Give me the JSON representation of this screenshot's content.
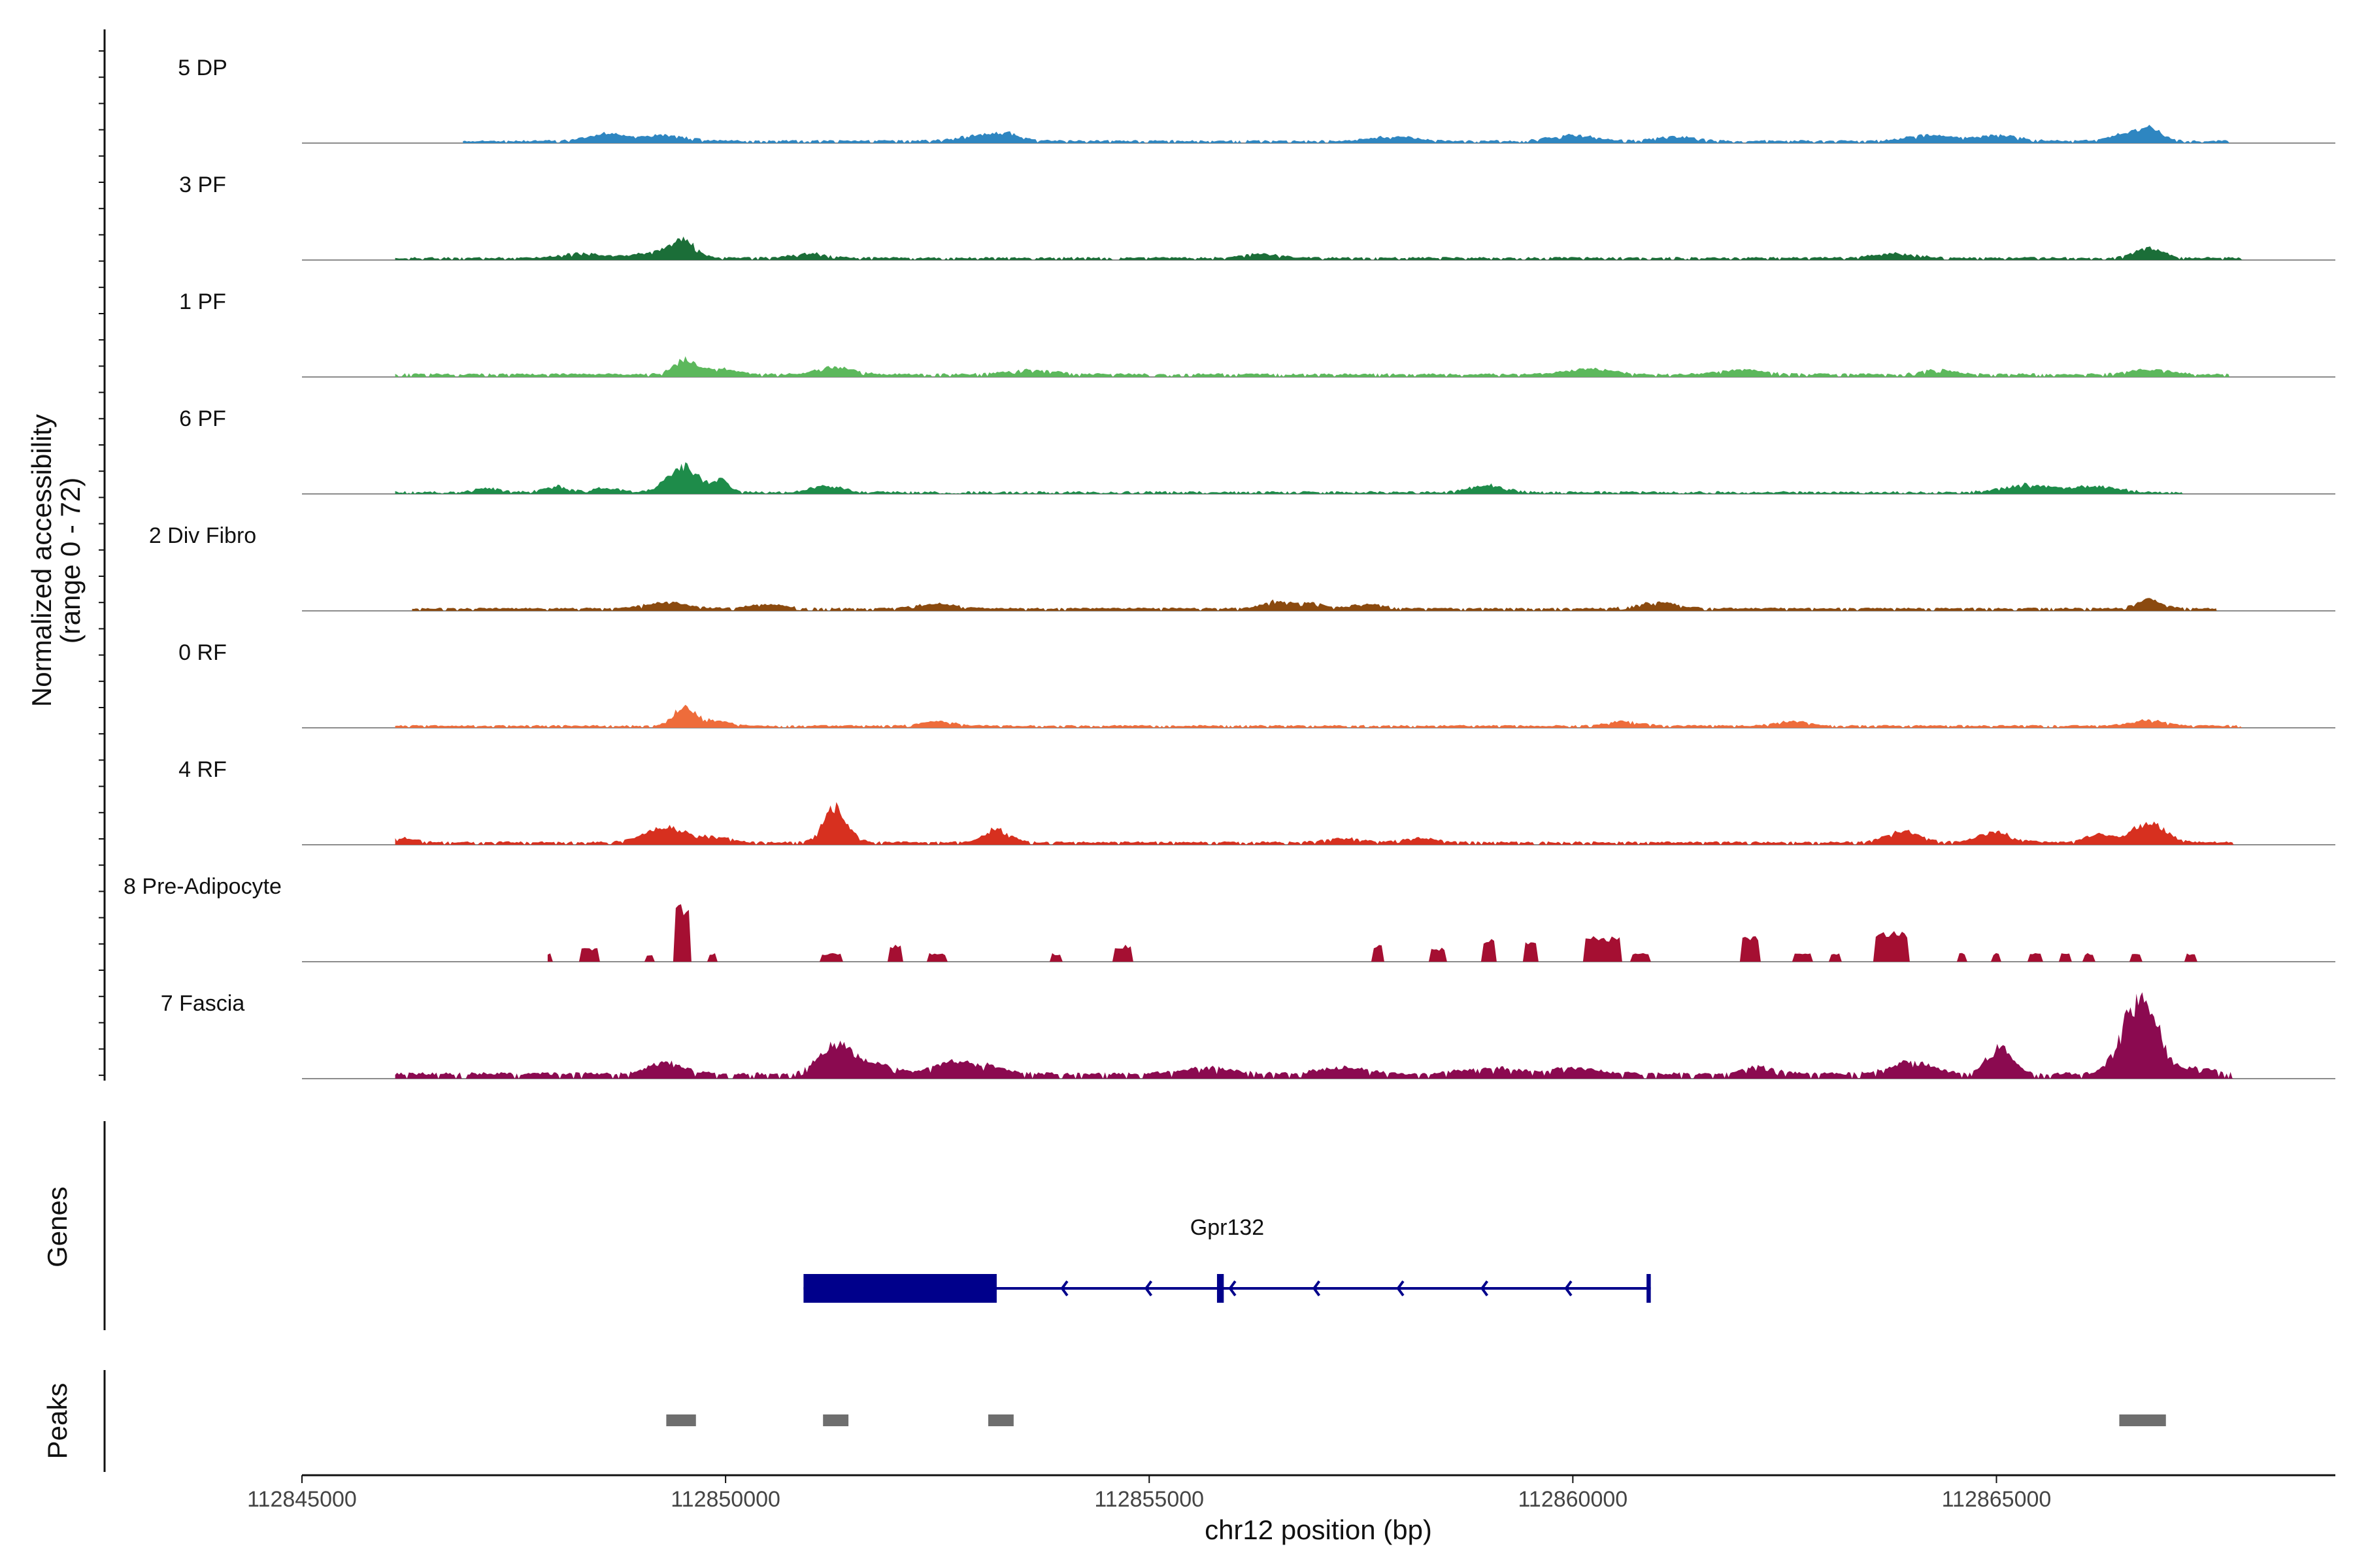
{
  "chart_data": {
    "type": "area",
    "title": "",
    "region": {
      "chromosome": "chr12",
      "start": 112845000,
      "end": 112869000
    },
    "xlabel": "chr12 position (bp)",
    "ylabel_line1": "Normalized accessibility",
    "ylabel_line2": "(range 0 - 72)",
    "ylim": [
      0,
      72
    ],
    "x_ticks": [
      112845000,
      112850000,
      112855000,
      112860000,
      112865000
    ],
    "x_tick_labels": [
      "112845000",
      "112850000",
      "112855000",
      "112860000",
      "112865000"
    ],
    "series": [
      {
        "name": "5 DP",
        "color": "#2E86C1",
        "data_start": 112846900,
        "data_end": 112867750,
        "baseline": 1.0,
        "noise": 1.2,
        "seed": 11,
        "blocky": false,
        "peaks": [
          [
            112848600,
            5,
            220
          ],
          [
            112849300,
            4,
            250
          ],
          [
            112852900,
            3,
            220
          ],
          [
            112853300,
            5,
            180
          ],
          [
            112857900,
            3,
            250
          ],
          [
            112860000,
            4,
            250
          ],
          [
            112861200,
            3,
            220
          ],
          [
            112864200,
            4,
            250
          ],
          [
            112865000,
            4,
            250
          ],
          [
            112866500,
            4,
            200
          ],
          [
            112866800,
            8,
            150
          ]
        ]
      },
      {
        "name": "3 PF",
        "color": "#1B6E38",
        "data_start": 112846100,
        "data_end": 112867900,
        "baseline": 1.0,
        "noise": 1.2,
        "seed": 23,
        "blocky": false,
        "peaks": [
          [
            112848300,
            3,
            250
          ],
          [
            112849200,
            4,
            250
          ],
          [
            112849500,
            11,
            140
          ],
          [
            112851000,
            3,
            200
          ],
          [
            112856300,
            3,
            200
          ],
          [
            112863800,
            3,
            250
          ],
          [
            112866800,
            7,
            160
          ]
        ]
      },
      {
        "name": "1 PF",
        "color": "#5CB85C",
        "data_start": 112846100,
        "data_end": 112867750,
        "baseline": 1.3,
        "noise": 1.3,
        "seed": 37,
        "blocky": false,
        "peaks": [
          [
            112849500,
            10,
            120
          ],
          [
            112849900,
            4,
            200
          ],
          [
            112851300,
            5,
            200
          ],
          [
            112853600,
            3,
            300
          ],
          [
            112860200,
            4,
            250
          ],
          [
            112862000,
            3,
            250
          ],
          [
            112864300,
            3,
            200
          ],
          [
            112866800,
            3,
            250
          ]
        ]
      },
      {
        "name": "6 PF",
        "color": "#1E8C4A",
        "data_start": 112846100,
        "data_end": 112867200,
        "baseline": 0.5,
        "noise": 1.5,
        "seed": 41,
        "blocky": false,
        "peaks": [
          [
            112847200,
            3,
            150
          ],
          [
            112848000,
            4,
            150
          ],
          [
            112848600,
            3,
            150
          ],
          [
            112849500,
            18,
            180
          ],
          [
            112849950,
            8,
            90
          ],
          [
            112851200,
            4,
            200
          ],
          [
            112859000,
            5,
            200
          ],
          [
            112865400,
            5,
            300
          ],
          [
            112866200,
            4,
            250
          ]
        ]
      },
      {
        "name": "2 Div Fibro",
        "color": "#8B4A0F",
        "data_start": 112846300,
        "data_end": 112867600,
        "baseline": 1.3,
        "noise": 1.0,
        "seed": 53,
        "blocky": false,
        "peaks": [
          [
            112849300,
            4,
            250
          ],
          [
            112850500,
            3,
            200
          ],
          [
            112852500,
            3,
            250
          ],
          [
            112856500,
            5,
            150
          ],
          [
            112856900,
            4,
            150
          ],
          [
            112857600,
            3,
            200
          ],
          [
            112861000,
            4,
            250
          ],
          [
            112866800,
            6,
            150
          ]
        ]
      },
      {
        "name": "0 RF",
        "color": "#EE6C3B",
        "data_start": 112846100,
        "data_end": 112867900,
        "baseline": 1.0,
        "noise": 1.0,
        "seed": 67,
        "blocky": false,
        "peaks": [
          [
            112849500,
            12,
            120
          ],
          [
            112849800,
            4,
            200
          ],
          [
            112852500,
            3,
            200
          ],
          [
            112860600,
            3,
            200
          ],
          [
            112862600,
            3,
            200
          ],
          [
            112866800,
            4,
            200
          ]
        ]
      },
      {
        "name": "4 RF",
        "color": "#D7301F",
        "data_start": 112846100,
        "data_end": 112867800,
        "baseline": 1.2,
        "noise": 1.2,
        "seed": 79,
        "blocky": false,
        "peaks": [
          [
            112846200,
            3,
            150
          ],
          [
            112849300,
            10,
            250
          ],
          [
            112849900,
            4,
            150
          ],
          [
            112851300,
            24,
            140
          ],
          [
            112853200,
            9,
            150
          ],
          [
            112857300,
            3,
            200
          ],
          [
            112858200,
            3,
            200
          ],
          [
            112863900,
            8,
            200
          ],
          [
            112865000,
            7,
            200
          ],
          [
            112866200,
            6,
            150
          ],
          [
            112866800,
            13,
            200
          ]
        ]
      },
      {
        "name": "8 Pre-Adipocyte",
        "color": "#A50F32",
        "data_start": 112847900,
        "data_end": 112867500,
        "baseline": 0,
        "noise": 0,
        "seed": 83,
        "blocky": true,
        "peaks": [
          [
            112847900,
            6,
            60
          ],
          [
            112848400,
            10,
            110
          ],
          [
            112849100,
            5,
            50
          ],
          [
            112849500,
            40,
            90
          ],
          [
            112849850,
            6,
            40
          ],
          [
            112851250,
            6,
            120
          ],
          [
            112852000,
            12,
            70
          ],
          [
            112852500,
            6,
            120
          ],
          [
            112853900,
            6,
            50
          ],
          [
            112854700,
            12,
            110
          ],
          [
            112857700,
            12,
            70
          ],
          [
            112858400,
            10,
            100
          ],
          [
            112859000,
            16,
            80
          ],
          [
            112859500,
            14,
            70
          ],
          [
            112860350,
            18,
            220
          ],
          [
            112860800,
            6,
            120
          ],
          [
            112862100,
            18,
            100
          ],
          [
            112862700,
            6,
            110
          ],
          [
            112863100,
            6,
            70
          ],
          [
            112863750,
            22,
            200
          ],
          [
            112864600,
            6,
            50
          ],
          [
            112865000,
            6,
            50
          ],
          [
            112865450,
            6,
            80
          ],
          [
            112865800,
            6,
            60
          ],
          [
            112866100,
            6,
            60
          ],
          [
            112866650,
            6,
            50
          ],
          [
            112867300,
            6,
            60
          ]
        ]
      },
      {
        "name": "7 Fascia",
        "color": "#8B0A50",
        "data_start": 112846100,
        "data_end": 112867800,
        "baseline": 2.5,
        "noise": 2.0,
        "seed": 97,
        "blocky": false,
        "peaks": [
          [
            112849300,
            8,
            200
          ],
          [
            112851300,
            20,
            200
          ],
          [
            112851800,
            6,
            200
          ],
          [
            112852600,
            6,
            200
          ],
          [
            112853000,
            6,
            250
          ],
          [
            112855700,
            4,
            300
          ],
          [
            112857300,
            4,
            300
          ],
          [
            112859000,
            4,
            300
          ],
          [
            112860000,
            4,
            300
          ],
          [
            112862200,
            5,
            200
          ],
          [
            112864000,
            8,
            250
          ],
          [
            112865050,
            18,
            150
          ],
          [
            112866700,
            55,
            200
          ],
          [
            112867400,
            4,
            150
          ]
        ]
      }
    ],
    "genes_panel": {
      "title": "Genes",
      "gene_name": "Gpr132",
      "strand": "-",
      "color": "#00008B",
      "tx_start": 112850920,
      "tx_end": 112860920,
      "thick_start": 112850920,
      "thick_end": 112853200,
      "exons": [
        [
          112855800,
          112855880
        ],
        [
          112860870,
          112860920
        ]
      ]
    },
    "peaks_panel": {
      "title": "Peaks",
      "color": "#6E6E6E",
      "peaks": [
        [
          112849300,
          112849650
        ],
        [
          112851150,
          112851450
        ],
        [
          112853100,
          112853400
        ],
        [
          112866450,
          112867000
        ]
      ]
    }
  }
}
